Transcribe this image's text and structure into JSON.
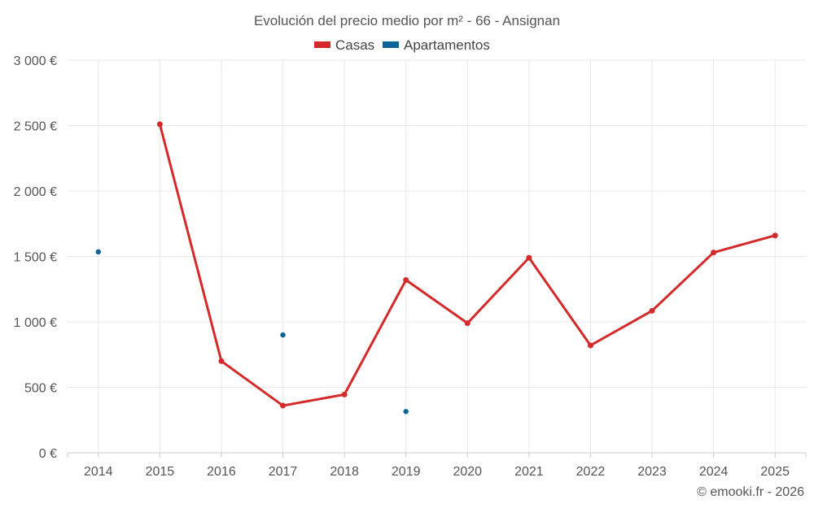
{
  "chart_data": {
    "type": "line",
    "title": "Evolución del precio medio por m² - 66 - Ansignan",
    "categories": [
      "2014",
      "2015",
      "2016",
      "2017",
      "2018",
      "2019",
      "2020",
      "2021",
      "2022",
      "2023",
      "2024",
      "2025"
    ],
    "series": [
      {
        "name": "Casas",
        "color": "#d42a2a",
        "style": "line",
        "values": [
          null,
          2510,
          700,
          360,
          445,
          1320,
          990,
          1490,
          820,
          1085,
          1530,
          1660
        ]
      },
      {
        "name": "Apartamentos",
        "color": "#0a6496",
        "style": "points",
        "values": [
          1535,
          null,
          null,
          900,
          null,
          315,
          null,
          null,
          null,
          null,
          null,
          null
        ]
      }
    ],
    "ylim": [
      0,
      3000
    ],
    "yticks": [
      0,
      500,
      1000,
      1500,
      2000,
      2500,
      3000
    ],
    "ytick_labels": [
      "0 €",
      "500 €",
      "1 000 €",
      "1 500 €",
      "2 000 €",
      "2 500 €",
      "3 000 €"
    ],
    "xlabel": "",
    "ylabel": "",
    "legend_position": "top-center",
    "grid": true
  },
  "credit": "© emooki.fr - 2026"
}
